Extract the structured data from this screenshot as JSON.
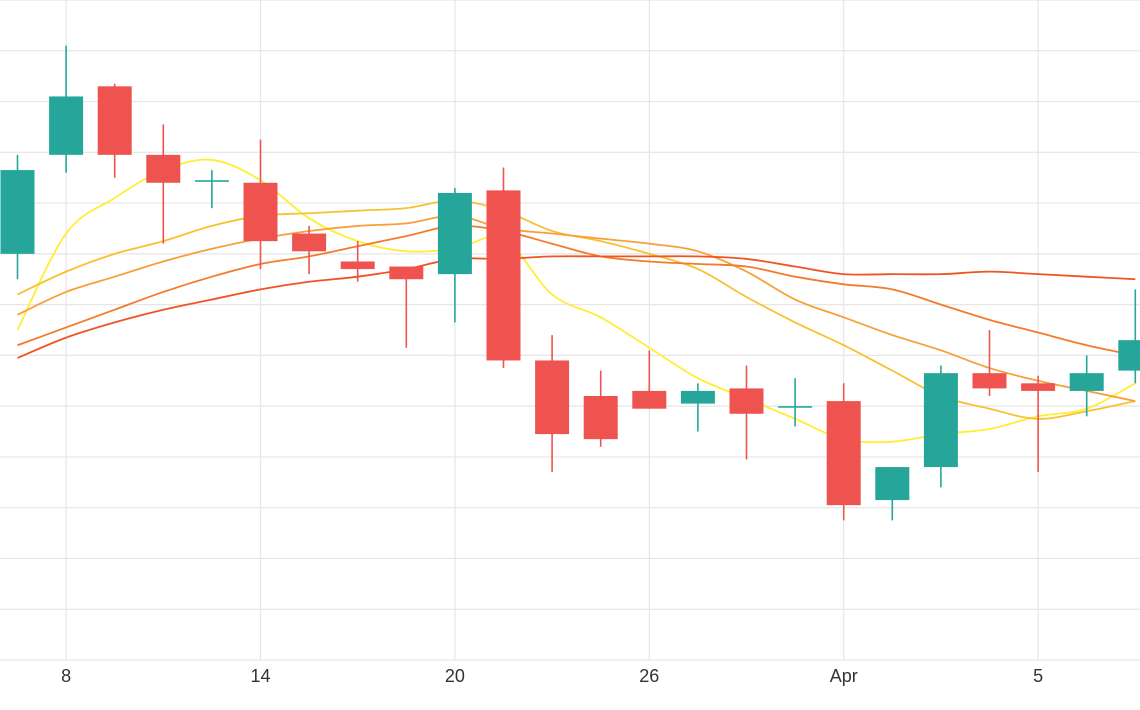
{
  "chart_data": {
    "type": "candlestick",
    "title": "",
    "xlabel": "",
    "ylabel": "",
    "grid": true,
    "legend": "none",
    "x_tick_labels": [
      {
        "label": "8",
        "index": 1
      },
      {
        "label": "14",
        "index": 5
      },
      {
        "label": "20",
        "index": 9
      },
      {
        "label": "26",
        "index": 13
      },
      {
        "label": "Apr",
        "index": 17
      },
      {
        "label": "5",
        "index": 21
      }
    ],
    "ylim": [
      0,
      13
    ],
    "candles": [
      {
        "index": 0,
        "open": 8.0,
        "high": 9.95,
        "low": 7.5,
        "close": 9.65
      },
      {
        "index": 1,
        "open": 9.95,
        "high": 12.1,
        "low": 9.6,
        "close": 11.1
      },
      {
        "index": 2,
        "open": 11.3,
        "high": 11.35,
        "low": 9.5,
        "close": 9.95
      },
      {
        "index": 3,
        "open": 9.95,
        "high": 10.55,
        "low": 8.2,
        "close": 9.4
      },
      {
        "index": 4,
        "open": 9.45,
        "high": 9.65,
        "low": 8.9,
        "close": 9.45
      },
      {
        "index": 5,
        "open": 9.4,
        "high": 10.25,
        "low": 7.7,
        "close": 8.25
      },
      {
        "index": 6,
        "open": 8.4,
        "high": 8.55,
        "low": 7.6,
        "close": 8.05
      },
      {
        "index": 7,
        "open": 7.85,
        "high": 8.25,
        "low": 7.45,
        "close": 7.7
      },
      {
        "index": 8,
        "open": 7.75,
        "high": 7.75,
        "low": 6.15,
        "close": 7.5
      },
      {
        "index": 9,
        "open": 7.6,
        "high": 9.3,
        "low": 6.65,
        "close": 9.2
      },
      {
        "index": 10,
        "open": 9.25,
        "high": 9.7,
        "low": 5.75,
        "close": 5.9
      },
      {
        "index": 11,
        "open": 5.9,
        "high": 6.4,
        "low": 3.7,
        "close": 4.45
      },
      {
        "index": 12,
        "open": 5.2,
        "high": 5.7,
        "low": 4.2,
        "close": 4.35
      },
      {
        "index": 13,
        "open": 5.3,
        "high": 6.1,
        "low": 4.95,
        "close": 4.95
      },
      {
        "index": 14,
        "open": 5.05,
        "high": 5.45,
        "low": 4.5,
        "close": 5.3
      },
      {
        "index": 15,
        "open": 5.35,
        "high": 5.8,
        "low": 3.95,
        "close": 4.85
      },
      {
        "index": 16,
        "open": 5.0,
        "high": 5.55,
        "low": 4.6,
        "close": 5.0
      },
      {
        "index": 17,
        "open": 5.1,
        "high": 5.45,
        "low": 2.75,
        "close": 3.05
      },
      {
        "index": 18,
        "open": 3.15,
        "high": 3.8,
        "low": 2.75,
        "close": 3.8
      },
      {
        "index": 19,
        "open": 3.8,
        "high": 5.8,
        "low": 3.4,
        "close": 5.65
      },
      {
        "index": 20,
        "open": 5.65,
        "high": 6.5,
        "low": 5.2,
        "close": 5.35
      },
      {
        "index": 21,
        "open": 5.45,
        "high": 5.6,
        "low": 3.7,
        "close": 5.3
      },
      {
        "index": 22,
        "open": 5.3,
        "high": 6.0,
        "low": 4.8,
        "close": 5.65
      },
      {
        "index": 23,
        "open": 5.7,
        "high": 7.3,
        "low": 5.45,
        "close": 6.3
      }
    ],
    "moving_averages": [
      {
        "color": "#ffee33",
        "values": [
          6.5,
          8.4,
          9.1,
          9.65,
          9.85,
          9.45,
          8.7,
          8.25,
          8.05,
          8.1,
          8.3,
          7.2,
          6.75,
          6.15,
          5.55,
          5.15,
          4.75,
          4.35,
          4.3,
          4.45,
          4.55,
          4.8,
          4.95,
          5.45
        ]
      },
      {
        "color": "#f7c232",
        "values": [
          7.2,
          7.65,
          8.0,
          8.25,
          8.55,
          8.75,
          8.8,
          8.85,
          8.9,
          9.05,
          8.85,
          8.45,
          8.25,
          8.0,
          7.7,
          7.15,
          6.65,
          6.2,
          5.7,
          5.2,
          4.95,
          4.75,
          4.9,
          5.1
        ]
      },
      {
        "color": "#f7a03a",
        "values": [
          6.8,
          7.25,
          7.55,
          7.85,
          8.1,
          8.3,
          8.45,
          8.55,
          8.6,
          8.75,
          8.5,
          8.4,
          8.3,
          8.2,
          8.05,
          7.65,
          7.1,
          6.75,
          6.4,
          6.1,
          5.75,
          5.5,
          5.3,
          5.1
        ]
      },
      {
        "color": "#f47a2c",
        "values": [
          6.2,
          6.55,
          6.9,
          7.25,
          7.55,
          7.8,
          7.95,
          8.15,
          8.35,
          8.55,
          8.45,
          8.2,
          7.95,
          7.85,
          7.8,
          7.75,
          7.55,
          7.4,
          7.3,
          7.0,
          6.7,
          6.45,
          6.2,
          6.0
        ]
      },
      {
        "color": "#ee5522",
        "values": [
          5.95,
          6.35,
          6.65,
          6.9,
          7.1,
          7.3,
          7.45,
          7.55,
          7.7,
          7.9,
          7.9,
          7.95,
          7.95,
          7.95,
          7.95,
          7.9,
          7.75,
          7.6,
          7.6,
          7.6,
          7.65,
          7.6,
          7.55,
          7.5
        ]
      }
    ],
    "colors": {
      "up": "#26a69a",
      "down": "#ef5350",
      "grid": "#e6e6e6",
      "axis_text": "#333333",
      "background": "#ffffff"
    }
  }
}
